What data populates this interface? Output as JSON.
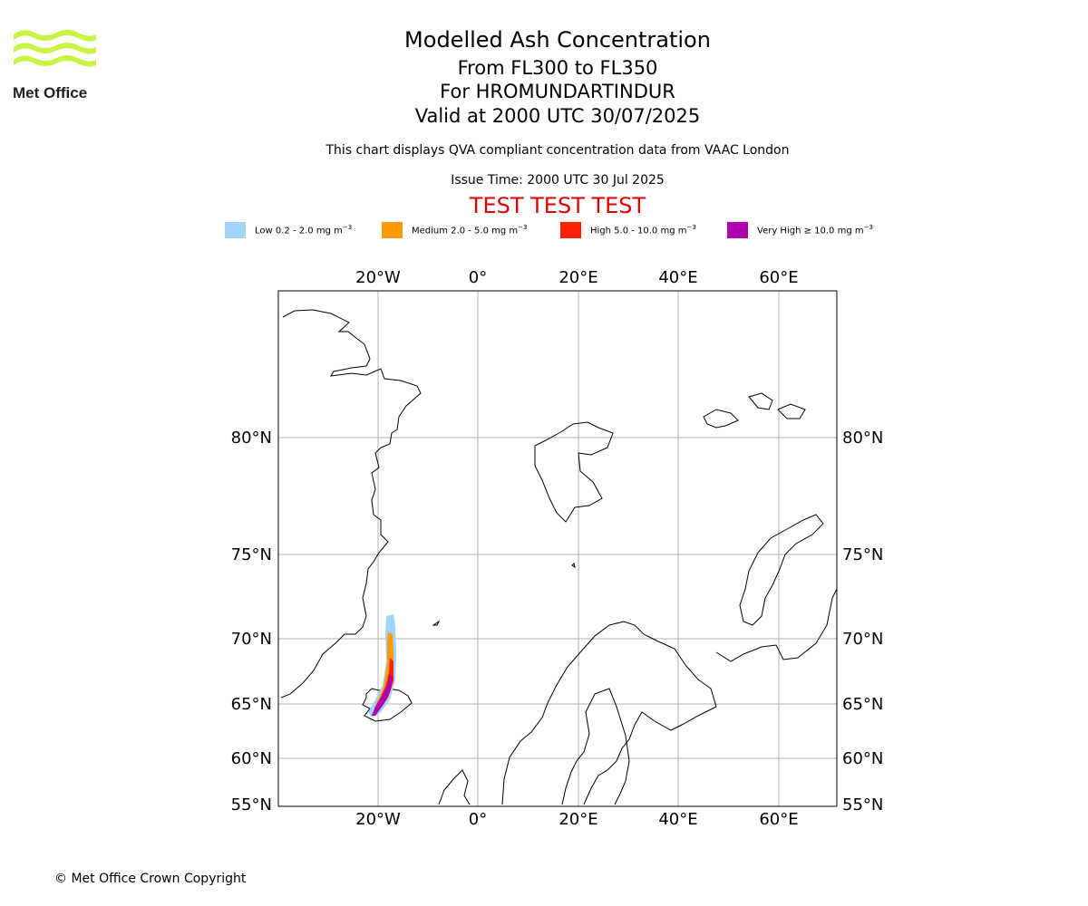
{
  "logo": {
    "text": "Met Office",
    "wave_color": "#c8f542"
  },
  "header": {
    "title": "Modelled Ash Concentration",
    "flight_levels": "From FL300 to FL350",
    "volcano_line": "For HROMUNDARTINDUR",
    "valid_line": "Valid at 2000 UTC 30/07/2025",
    "description": "This chart displays QVA compliant concentration data from VAAC London",
    "issue_time": "Issue Time: 2000 UTC 30 Jul 2025",
    "test_banner": "TEST TEST TEST"
  },
  "legend": [
    {
      "label": "Low 0.2 - 2.0 mg m",
      "exp": "−3",
      "color": "#a0d4fc"
    },
    {
      "label": "Medium 2.0 - 5.0 mg m",
      "exp": "−3",
      "color": "#ff9a00"
    },
    {
      "label": "High 5.0 - 10.0 mg m",
      "exp": "−3",
      "color": "#ff2200"
    },
    {
      "label": "Very High ≥ 10.0 mg m",
      "exp": "−3",
      "color": "#b000b0"
    }
  ],
  "map": {
    "longitude_labels": [
      "20°W",
      "0°",
      "20°E",
      "40°E",
      "60°E"
    ],
    "latitude_labels": [
      "80°N",
      "75°N",
      "70°N",
      "65°N",
      "60°N",
      "55°N"
    ]
  },
  "footer": {
    "copyright": "© Met Office Crown Copyright"
  }
}
